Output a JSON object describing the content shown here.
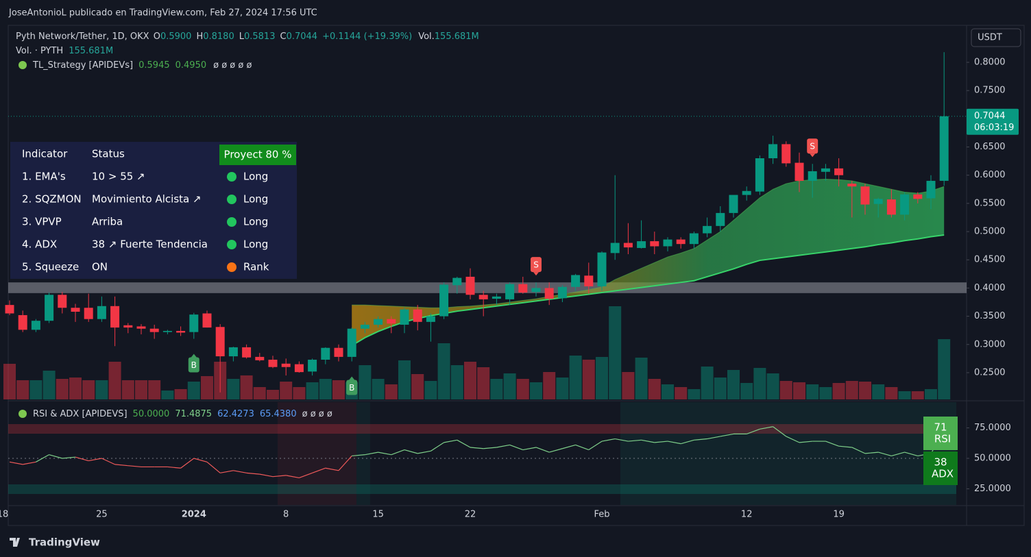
{
  "header": {
    "byline": "JoseAntonioL publicado en TradingView.com, Feb 27, 2024 17:56 UTC",
    "currency": "USDT"
  },
  "legend": {
    "symbol": "Pyth Network/Tether, 1D, OKX",
    "ohlc": [
      {
        "key": "O",
        "value": "0.5900"
      },
      {
        "key": "H",
        "value": "0.8180"
      },
      {
        "key": "L",
        "value": "0.5813"
      },
      {
        "key": "C",
        "value": "0.7044"
      }
    ],
    "change": "+0.1144 (+19.39%)",
    "vol_key": "Vol.",
    "vol_value": "155.681M",
    "vol_line": "Vol. · PYTH",
    "vol_line_value": "155.681M",
    "strategy": "TL_Strategy [APIDEVs]",
    "strategy_values": [
      "0.5945",
      "0.4950"
    ],
    "strategy_empty": "ø ø ø ø ø"
  },
  "table": {
    "headers": [
      "Indicator",
      "Status"
    ],
    "badge": "Proyect 80 %",
    "rows": [
      {
        "indicator": "1. EMA's",
        "status": "10 > 55 ↗",
        "signal": "Long",
        "dot_color": "#22c55e"
      },
      {
        "indicator": "2. SQZMON",
        "status": "Movimiento Alcista ↗",
        "signal": "Long",
        "dot_color": "#22c55e"
      },
      {
        "indicator": "3. VPVP",
        "status": "Arriba",
        "signal": "Long",
        "dot_color": "#22c55e"
      },
      {
        "indicator": "4. ADX",
        "status": "38 ↗ Fuerte Tendencia",
        "signal": "Long",
        "dot_color": "#22c55e"
      },
      {
        "indicator": "5. Squeeze",
        "status": "ON",
        "signal": "Rank",
        "dot_color": "#f97316"
      }
    ]
  },
  "chart_data": {
    "type": "candlestick",
    "up_color": "#089981",
    "down_color": "#f23645",
    "open": [
      0.37,
      0.352,
      0.326,
      0.342,
      0.388,
      0.365,
      0.365,
      0.345,
      0.368,
      0.334,
      0.332,
      0.328,
      0.322,
      0.324,
      0.322,
      0.355,
      0.331,
      0.279,
      0.295,
      0.278,
      0.273,
      0.266,
      0.265,
      0.252,
      0.273,
      0.294,
      0.278,
      0.328,
      0.335,
      0.345,
      0.335,
      0.362,
      0.34,
      0.35,
      0.405,
      0.42,
      0.388,
      0.381,
      0.38,
      0.407,
      0.393,
      0.4,
      0.382,
      0.402,
      0.422,
      0.403,
      0.462,
      0.48,
      0.471,
      0.483,
      0.474,
      0.486,
      0.478,
      0.497,
      0.51,
      0.533,
      0.565,
      0.571,
      0.63,
      0.655,
      0.622,
      0.59,
      0.606,
      0.612,
      0.585,
      0.58,
      0.549,
      0.557,
      0.53,
      0.566,
      0.559,
      0.59
    ],
    "high": [
      0.378,
      0.36,
      0.345,
      0.392,
      0.393,
      0.372,
      0.39,
      0.385,
      0.385,
      0.338,
      0.336,
      0.335,
      0.326,
      0.332,
      0.356,
      0.36,
      0.336,
      0.296,
      0.3,
      0.285,
      0.28,
      0.275,
      0.27,
      0.275,
      0.295,
      0.3,
      0.33,
      0.34,
      0.35,
      0.35,
      0.365,
      0.37,
      0.355,
      0.41,
      0.42,
      0.435,
      0.395,
      0.39,
      0.41,
      0.42,
      0.41,
      0.41,
      0.405,
      0.425,
      0.445,
      0.465,
      0.6,
      0.515,
      0.52,
      0.5,
      0.49,
      0.49,
      0.5,
      0.525,
      0.545,
      0.56,
      0.58,
      0.635,
      0.67,
      0.66,
      0.64,
      0.62,
      0.62,
      0.63,
      0.59,
      0.585,
      0.56,
      0.575,
      0.57,
      0.57,
      0.6,
      0.818
    ],
    "low": [
      0.352,
      0.322,
      0.322,
      0.338,
      0.355,
      0.34,
      0.34,
      0.34,
      0.297,
      0.32,
      0.318,
      0.31,
      0.318,
      0.315,
      0.31,
      0.33,
      0.215,
      0.27,
      0.275,
      0.27,
      0.258,
      0.245,
      0.25,
      0.245,
      0.265,
      0.27,
      0.27,
      0.32,
      0.33,
      0.32,
      0.32,
      0.325,
      0.305,
      0.345,
      0.39,
      0.38,
      0.35,
      0.37,
      0.37,
      0.39,
      0.385,
      0.37,
      0.375,
      0.395,
      0.39,
      0.395,
      0.45,
      0.46,
      0.47,
      0.46,
      0.465,
      0.47,
      0.47,
      0.49,
      0.5,
      0.525,
      0.555,
      0.565,
      0.62,
      0.615,
      0.57,
      0.56,
      0.59,
      0.58,
      0.525,
      0.53,
      0.525,
      0.525,
      0.52,
      0.55,
      0.54,
      0.5813
    ],
    "close": [
      0.355,
      0.326,
      0.342,
      0.388,
      0.365,
      0.358,
      0.345,
      0.368,
      0.33,
      0.33,
      0.328,
      0.322,
      0.324,
      0.321,
      0.353,
      0.33,
      0.279,
      0.295,
      0.277,
      0.272,
      0.26,
      0.26,
      0.251,
      0.273,
      0.294,
      0.278,
      0.328,
      0.335,
      0.345,
      0.337,
      0.362,
      0.34,
      0.35,
      0.406,
      0.418,
      0.388,
      0.38,
      0.385,
      0.407,
      0.392,
      0.4,
      0.381,
      0.402,
      0.423,
      0.403,
      0.463,
      0.48,
      0.472,
      0.483,
      0.474,
      0.486,
      0.478,
      0.497,
      0.51,
      0.533,
      0.565,
      0.572,
      0.63,
      0.655,
      0.621,
      0.59,
      0.607,
      0.612,
      0.6,
      0.58,
      0.548,
      0.558,
      0.53,
      0.566,
      0.558,
      0.59,
      0.7044
    ],
    "volume": [
      92.0,
      49.6,
      49.6,
      74.3,
      53.1,
      56.6,
      49.6,
      49.6,
      97.4,
      49.6,
      49.6,
      49.6,
      23.0,
      26.6,
      46.0,
      60.2,
      97.4,
      53.1,
      62.0,
      31.9,
      24.8,
      46.0,
      31.9,
      44.3,
      53.1,
      49.6,
      44.3,
      88.5,
      53.1,
      38.9,
      100.9,
      65.5,
      47.8,
      145.1,
      88.5,
      97.4,
      83.2,
      53.1,
      67.3,
      53.1,
      44.3,
      70.8,
      56.6,
      113.3,
      102.7,
      109.7,
      240.7,
      70.8,
      108.0,
      53.1,
      38.9,
      31.9,
      26.6,
      85.0,
      56.6,
      76.1,
      42.5,
      81.4,
      67.3,
      47.8,
      44.3,
      38.9,
      31.9,
      42.5,
      47.8,
      46.0,
      38.9,
      31.9,
      21.2,
      21.2,
      26.6,
      155.681
    ],
    "ema_fast": [
      null,
      null,
      null,
      null,
      null,
      null,
      null,
      null,
      null,
      null,
      null,
      null,
      null,
      null,
      null,
      null,
      null,
      null,
      null,
      null,
      null,
      null,
      null,
      null,
      null,
      null,
      0.37,
      0.37,
      0.369,
      0.368,
      0.367,
      0.366,
      0.365,
      0.365,
      0.367,
      0.368,
      0.37,
      0.372,
      0.375,
      0.378,
      0.381,
      0.385,
      0.389,
      0.393,
      0.397,
      0.402,
      0.415,
      0.425,
      0.435,
      0.445,
      0.455,
      0.462,
      0.47,
      0.485,
      0.5,
      0.52,
      0.54,
      0.56,
      0.575,
      0.585,
      0.59,
      0.592,
      0.593,
      0.592,
      0.59,
      0.585,
      0.58,
      0.575,
      0.57,
      0.568,
      0.572,
      0.58
    ],
    "ema_slow": [
      null,
      null,
      null,
      null,
      null,
      null,
      null,
      null,
      null,
      null,
      null,
      null,
      null,
      null,
      null,
      null,
      null,
      null,
      null,
      null,
      null,
      null,
      null,
      null,
      null,
      null,
      0.298,
      0.312,
      0.323,
      0.332,
      0.34,
      0.346,
      0.351,
      0.355,
      0.359,
      0.362,
      0.365,
      0.368,
      0.371,
      0.374,
      0.377,
      0.38,
      0.383,
      0.386,
      0.389,
      0.392,
      0.395,
      0.398,
      0.401,
      0.404,
      0.407,
      0.41,
      0.413,
      0.42,
      0.427,
      0.434,
      0.442,
      0.449,
      0.452,
      0.455,
      0.458,
      0.461,
      0.464,
      0.467,
      0.47,
      0.473,
      0.477,
      0.48,
      0.484,
      0.487,
      0.491,
      0.494
    ],
    "zone": [
      0.391,
      0.41
    ],
    "signals": [
      {
        "label": "B",
        "at": 14,
        "color": "#3f9c5e"
      },
      {
        "label": "B",
        "at": 26,
        "color": "#3f9c5e"
      },
      {
        "label": "S",
        "at": 40,
        "color": "#f05350"
      },
      {
        "label": "S",
        "at": 61,
        "color": "#f05350"
      }
    ],
    "ylim": [
      0.2026,
      0.8619
    ],
    "yticks": [
      {
        "value": 0.25,
        "label": "0.2500"
      },
      {
        "value": 0.3,
        "label": "0.3000"
      },
      {
        "value": 0.35,
        "label": "0.3500"
      },
      {
        "value": 0.4,
        "label": "0.4000"
      },
      {
        "value": 0.45,
        "label": "0.4500"
      },
      {
        "value": 0.5,
        "label": "0.5000"
      },
      {
        "value": 0.55,
        "label": "0.5500"
      },
      {
        "value": 0.6,
        "label": "0.6000"
      },
      {
        "value": 0.65,
        "label": "0.6500"
      },
      {
        "value": 0.7,
        "label": "0.7000"
      },
      {
        "value": 0.75,
        "label": "0.7500"
      },
      {
        "value": 0.8,
        "label": "0.8000"
      }
    ],
    "last_price": {
      "label": "0.7044",
      "countdown": "06:03:19"
    },
    "xticks": [
      {
        "at": 0,
        "label": "18"
      },
      {
        "at": 7,
        "label": "25"
      },
      {
        "at": 14,
        "label": "2024"
      },
      {
        "at": 21,
        "label": "8"
      },
      {
        "at": 28,
        "label": "15"
      },
      {
        "at": 35,
        "label": "22"
      },
      {
        "at": 45,
        "label": "Feb"
      },
      {
        "at": 56,
        "label": "12"
      },
      {
        "at": 63,
        "label": "19"
      }
    ]
  },
  "rsi_pane": {
    "title": "RSI & ADX [APIDEVS]",
    "values_text": [
      "50.0000",
      "71.4875",
      "62.4273",
      "65.4380"
    ],
    "empty": "ø ø ø ø",
    "rsi": [
      47,
      45,
      47,
      53,
      50,
      51,
      48,
      50,
      45,
      44,
      43,
      43,
      43,
      42,
      50,
      47,
      38,
      40,
      38,
      37,
      35,
      36,
      34,
      38,
      42,
      40,
      52,
      53,
      55,
      53,
      57,
      54,
      56,
      63,
      65,
      59,
      58,
      59,
      61,
      57,
      59,
      55,
      58,
      61,
      57,
      64,
      66,
      64,
      65,
      63,
      64,
      62,
      65,
      66,
      68,
      70,
      70,
      74,
      76,
      68,
      63,
      64,
      64,
      60,
      59,
      54,
      55,
      52,
      55,
      52,
      54,
      71.4875
    ],
    "ylim": [
      12.9,
      94.4
    ],
    "yticks": [
      {
        "value": 25,
        "label": "25.0000"
      },
      {
        "value": 50,
        "label": "50.0000"
      },
      {
        "value": 75,
        "label": "75.0000"
      }
    ],
    "badges": [
      {
        "value": "71",
        "name": "RSI"
      },
      {
        "value": "38",
        "name": "ADX"
      }
    ]
  },
  "footer": {
    "brand": "TradingView"
  }
}
